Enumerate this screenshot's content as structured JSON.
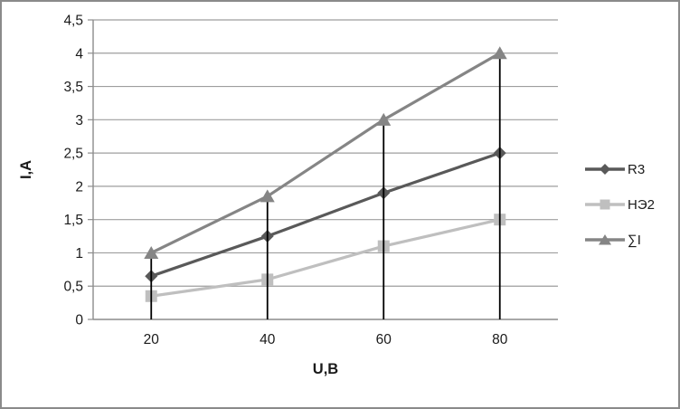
{
  "figure": {
    "background": "#ffffff",
    "border_color": "#8a8a8a"
  },
  "chart_data": {
    "type": "line",
    "title": "",
    "x": [
      20,
      40,
      60,
      80
    ],
    "x_tick_labels": [
      "20",
      "40",
      "60",
      "80"
    ],
    "xlabel": "U,B",
    "ylabel": "I,A",
    "ylim": [
      0,
      4.5
    ],
    "ytick_step": 0.5,
    "y_tick_labels": [
      "0",
      "0,5",
      "1",
      "1,5",
      "2",
      "2,5",
      "3",
      "3,5",
      "4",
      "4,5"
    ],
    "grid": true,
    "drop_lines": true,
    "legend_position": "right",
    "series": [
      {
        "name": "R3",
        "marker": "diamond",
        "color": "#595959",
        "values": [
          0.65,
          1.25,
          1.9,
          2.5
        ]
      },
      {
        "name": "НЭ2",
        "marker": "square",
        "color": "#bfbfbf",
        "values": [
          0.35,
          0.6,
          1.1,
          1.5
        ]
      },
      {
        "name": "∑I",
        "marker": "triangle",
        "color": "#858585",
        "values": [
          1.0,
          1.85,
          3.0,
          4.0
        ]
      }
    ],
    "colors": {
      "gridline": "#9e9e9e",
      "axis": "#8c8c8c",
      "drop_line": "#000000",
      "text": "#1a1a1a"
    }
  }
}
